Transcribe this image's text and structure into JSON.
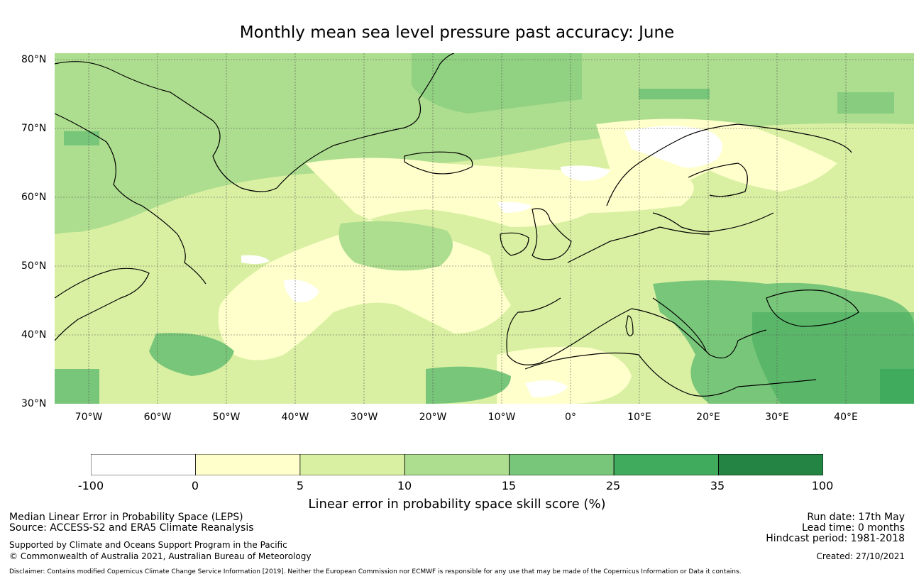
{
  "title": "Monthly mean sea level pressure past accuracy: June",
  "lat_labels": [
    "80°N",
    "70°N",
    "60°N",
    "50°N",
    "40°N",
    "30°N"
  ],
  "lon_labels": [
    "70°W",
    "60°W",
    "50°W",
    "40°W",
    "30°W",
    "20°W",
    "10°W",
    "0°",
    "10°E",
    "20°E",
    "30°E",
    "40°E"
  ],
  "colorbar": {
    "title": "Linear error in probability space skill score (%)",
    "labels": [
      "-100",
      "0",
      "5",
      "10",
      "15",
      "25",
      "35",
      "100"
    ],
    "colors": [
      "#ffffff",
      "#ffffcc",
      "#d9f0a3",
      "#addd8e",
      "#78c679",
      "#41ab5d",
      "#238443"
    ]
  },
  "footer": {
    "line1": "Median Linear Error in Probability Space (LEPS)",
    "line2": "Source: ACCESS-S2 and ERA5 Climate Reanalysis",
    "line3": "Supported by Climate and Oceans Support Program in the Pacific",
    "line4": "© Commonwealth of Australia 2021, Australian Bureau of Meteorology",
    "run_date": "Run date: 17th May",
    "lead_time": "Lead time: 0 months",
    "hindcast": "Hindcast period: 1981-2018",
    "created": "Created: 27/10/2021",
    "disclaimer": "Disclaimer: Contains modified Copernicus Climate Change Service Information [2019]. Neither the European Commission nor ECMWF is responsible for any use that may be made of the Copernicus Information or Data it contains."
  }
}
